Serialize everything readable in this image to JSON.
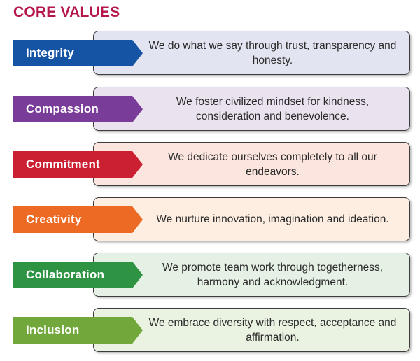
{
  "title": "CORE VALUES",
  "colors": {
    "title": "#b5174b"
  },
  "values": [
    {
      "label": "Integrity",
      "description": "We do what we say through trust, transparency and honesty.",
      "tag_color": "#1553a5",
      "card_color": "#e3e4f1"
    },
    {
      "label": "Compassion",
      "description": "We foster civilized mindset for kindness, consideration and benevolence.",
      "tag_color": "#7a3c99",
      "card_color": "#ebe2ef"
    },
    {
      "label": "Commitment",
      "description": "We dedicate ourselves completely to all our endeavors.",
      "tag_color": "#cb2031",
      "card_color": "#fbe5de"
    },
    {
      "label": "Creativity",
      "description": "We nurture innovation, imagination and ideation.",
      "tag_color": "#ec6a23",
      "card_color": "#fdeee1"
    },
    {
      "label": "Collaboration",
      "description": "We promote team work through togetherness, harmony and acknowledgment.",
      "tag_color": "#2e9444",
      "card_color": "#e6f1e5"
    },
    {
      "label": "Inclusion",
      "description": "We embrace diversity with respect, acceptance and affirmation.",
      "tag_color": "#72a83b",
      "card_color": "#eaf2e2"
    }
  ]
}
